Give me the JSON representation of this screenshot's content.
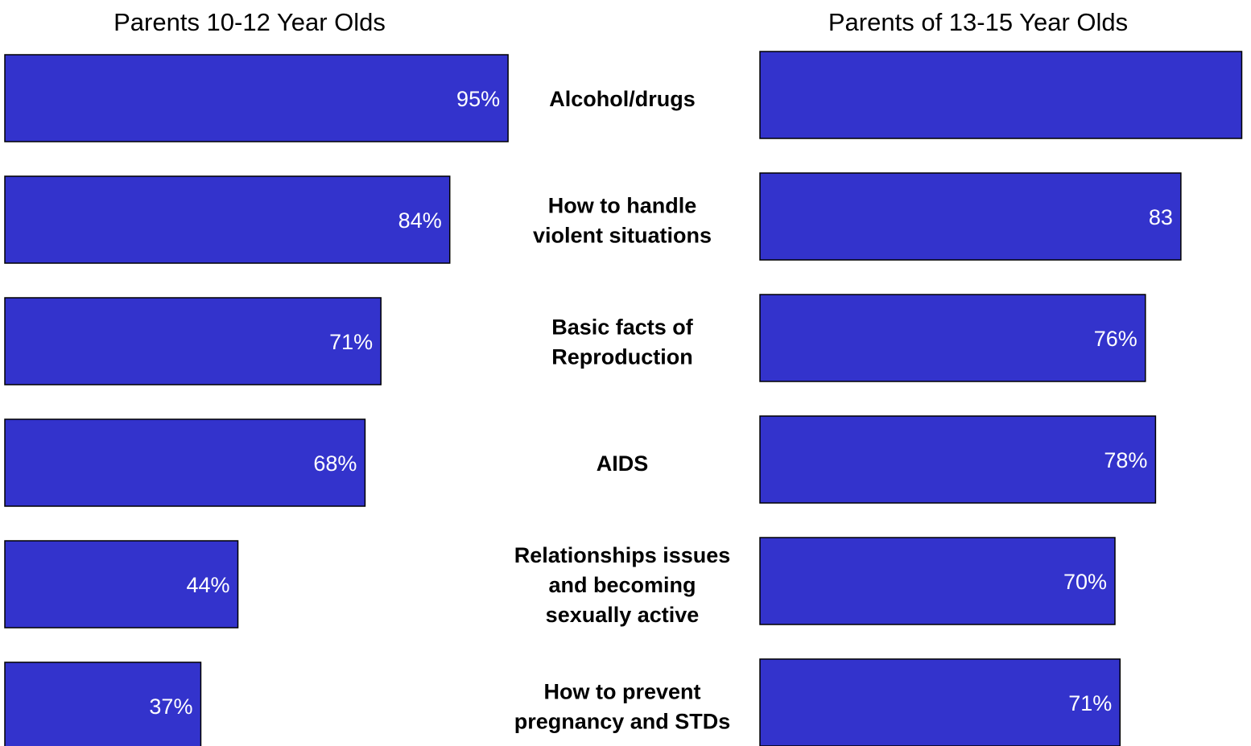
{
  "chart_data": {
    "type": "bar",
    "orientation": "horizontal",
    "bar_color": "#3333cc",
    "categories": [
      [
        "Alcohol/drugs"
      ],
      [
        "How to handle",
        "violent situations"
      ],
      [
        "Basic facts of",
        "Reproduction"
      ],
      [
        "AIDS"
      ],
      [
        "Relationships issues",
        "and becoming",
        "sexually active"
      ],
      [
        "How to prevent",
        "pregnancy and STDs"
      ]
    ],
    "series": [
      {
        "name": "Parents 10-12 Year Olds",
        "values": [
          95,
          84,
          71,
          68,
          44,
          37
        ],
        "labels": [
          "95%",
          "84%",
          "71%",
          "68%",
          "44%",
          "37%"
        ]
      },
      {
        "name": "Parents of 13-15 Year Olds",
        "values": [
          95,
          83,
          76,
          78,
          70,
          71
        ],
        "labels": [
          "",
          "83",
          "76%",
          "78%",
          "70%",
          "71%"
        ]
      }
    ],
    "xlim": [
      0,
      100
    ],
    "grid": false,
    "legend": "none"
  }
}
